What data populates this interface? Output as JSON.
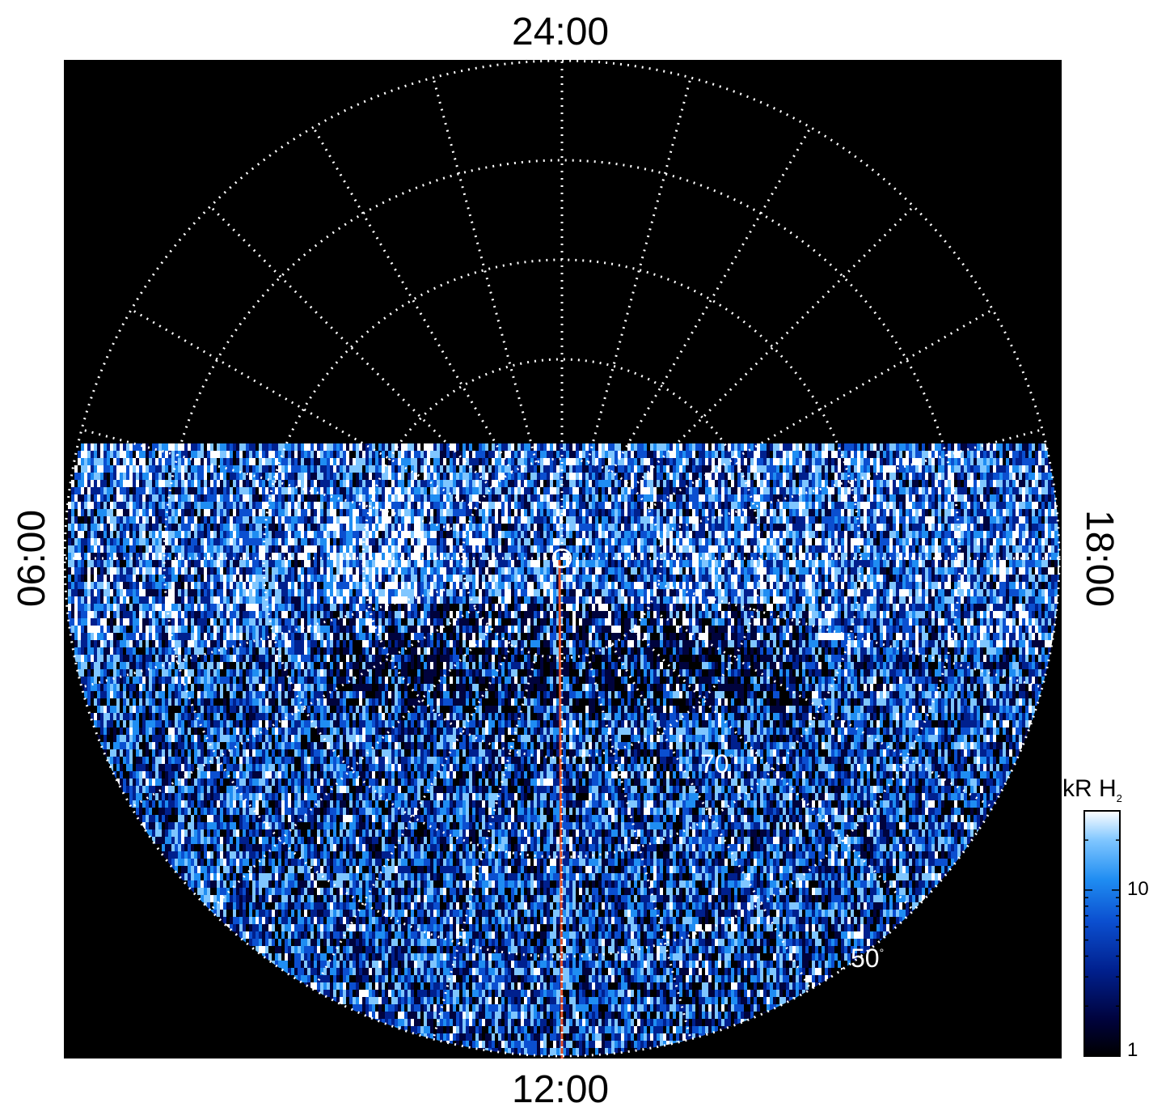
{
  "chart_data": {
    "type": "heatmap",
    "projection": "polar (north-up local time, colatitude radius)",
    "local_time_labels": {
      "top": "24:00",
      "bottom": "12:00",
      "left": "06:00",
      "right": "18:00"
    },
    "latitude_labels": [
      {
        "text": "70",
        "deg_symbol": "°",
        "latitude": 70
      },
      {
        "text": "50",
        "deg_symbol": "°",
        "latitude": 50
      }
    ],
    "grid": {
      "latitude_circles_deg": [
        80,
        70,
        60,
        50,
        40
      ],
      "local_time_meridians_hours": [
        0,
        1,
        2,
        3,
        4,
        5,
        6,
        7,
        8,
        9,
        10,
        11,
        12,
        13,
        14,
        15,
        16,
        17,
        18,
        19,
        20,
        21,
        22,
        23
      ],
      "style": "white dotted"
    },
    "data_coverage": "observed half on dayside (06:00–12:00–18:00), blank nightside",
    "overlay_line": {
      "description": "red meridian line from pole to equatorward edge",
      "local_time": "12:00",
      "color": "#e0502a"
    },
    "colorbar": {
      "title": "kR H",
      "title_subscript": "2",
      "scale": "log",
      "range": [
        1,
        30
      ],
      "tick_labels": [
        "10",
        "1"
      ],
      "tick_values": [
        10,
        1
      ],
      "colormap": [
        "#000000",
        "#00033d",
        "#00208e",
        "#0b4fd0",
        "#1f8df2",
        "#7fc6ff",
        "#ffffff"
      ]
    },
    "background": "#000000"
  }
}
